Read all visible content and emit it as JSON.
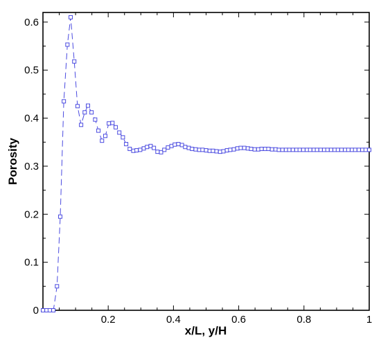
{
  "chart_data": {
    "type": "line",
    "title": "",
    "xlabel": "x/L, y/H",
    "ylabel": "Porosity",
    "xlim": [
      0,
      1
    ],
    "ylim": [
      0,
      0.62
    ],
    "x_ticks": [
      0.2,
      0.4,
      0.6,
      0.8,
      1
    ],
    "x_tick_labels": [
      "0.2",
      "0.4",
      "0.6",
      "0.8",
      "1"
    ],
    "y_ticks": [
      0,
      0.1,
      0.2,
      0.3,
      0.4,
      0.5,
      0.6
    ],
    "y_tick_labels": [
      "0",
      "0.1",
      "0.2",
      "0.3",
      "0.4",
      "0.5",
      "0.6"
    ],
    "grid": false,
    "legend": "none",
    "series": [
      {
        "line_style": "dashed",
        "marker": "square",
        "color": "#4a4ae0",
        "x": [
          0.0,
          0.011,
          0.021,
          0.032,
          0.043,
          0.053,
          0.064,
          0.075,
          0.085,
          0.096,
          0.106,
          0.117,
          0.128,
          0.138,
          0.149,
          0.16,
          0.17,
          0.181,
          0.191,
          0.202,
          0.213,
          0.223,
          0.234,
          0.245,
          0.255,
          0.266,
          0.277,
          0.287,
          0.298,
          0.309,
          0.319,
          0.33,
          0.34,
          0.351,
          0.362,
          0.372,
          0.383,
          0.394,
          0.404,
          0.415,
          0.426,
          0.436,
          0.447,
          0.457,
          0.468,
          0.479,
          0.489,
          0.5,
          0.511,
          0.521,
          0.532,
          0.543,
          0.553,
          0.564,
          0.574,
          0.585,
          0.596,
          0.606,
          0.617,
          0.628,
          0.638,
          0.649,
          0.66,
          0.67,
          0.681,
          0.691,
          0.702,
          0.713,
          0.723,
          0.734,
          0.745,
          0.755,
          0.766,
          0.777,
          0.787,
          0.798,
          0.809,
          0.819,
          0.83,
          0.84,
          0.851,
          0.862,
          0.872,
          0.883,
          0.894,
          0.904,
          0.915,
          0.926,
          0.936,
          0.947,
          0.957,
          0.968,
          0.979,
          0.989,
          1.0
        ],
        "y": [
          0,
          0,
          0,
          0,
          0.05,
          0.195,
          0.435,
          0.553,
          0.61,
          0.518,
          0.425,
          0.386,
          0.412,
          0.426,
          0.412,
          0.397,
          0.374,
          0.353,
          0.363,
          0.389,
          0.39,
          0.381,
          0.37,
          0.36,
          0.346,
          0.336,
          0.332,
          0.333,
          0.334,
          0.337,
          0.34,
          0.342,
          0.338,
          0.33,
          0.329,
          0.334,
          0.339,
          0.342,
          0.345,
          0.346,
          0.344,
          0.34,
          0.338,
          0.336,
          0.335,
          0.334,
          0.334,
          0.333,
          0.332,
          0.332,
          0.331,
          0.33,
          0.331,
          0.333,
          0.334,
          0.335,
          0.337,
          0.338,
          0.338,
          0.337,
          0.336,
          0.335,
          0.335,
          0.336,
          0.336,
          0.336,
          0.335,
          0.335,
          0.334,
          0.334,
          0.334,
          0.334,
          0.334,
          0.334,
          0.334,
          0.334,
          0.334,
          0.334,
          0.334,
          0.334,
          0.334,
          0.334,
          0.334,
          0.334,
          0.334,
          0.334,
          0.334,
          0.334,
          0.334,
          0.334,
          0.334,
          0.334,
          0.334,
          0.334,
          0.334
        ]
      }
    ]
  }
}
